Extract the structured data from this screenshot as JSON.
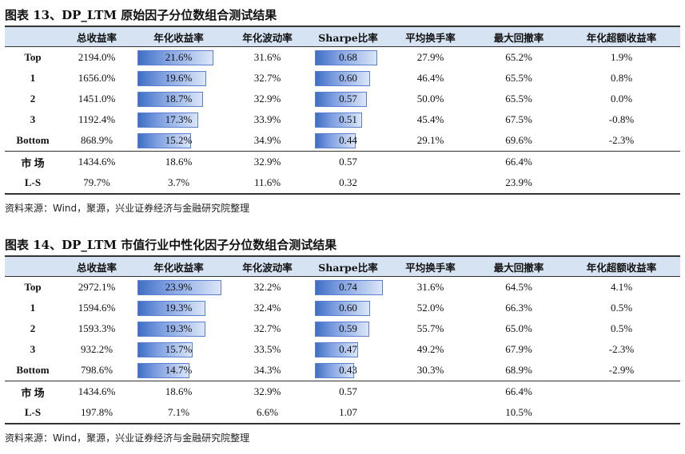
{
  "tables": [
    {
      "title": "图表 13、DP_LTM 原始因子分位数组合测试结果",
      "headers": [
        "",
        "总收益率",
        "年化收益率",
        "年化波动率",
        "Sharpe比率",
        "平均换手率",
        "最大回撤率",
        "年化超额收益率"
      ],
      "rows": [
        {
          "label": "Top",
          "total": "2194.0%",
          "annual": "21.6%",
          "vol": "31.6%",
          "sharpe": "0.68",
          "turnover": "27.9%",
          "maxdd": "65.2%",
          "excess": "1.9%",
          "annual_bar": 0.216,
          "sharpe_bar": 0.68
        },
        {
          "label": "1",
          "total": "1656.0%",
          "annual": "19.6%",
          "vol": "32.7%",
          "sharpe": "0.60",
          "turnover": "46.4%",
          "maxdd": "65.5%",
          "excess": "0.8%",
          "annual_bar": 0.196,
          "sharpe_bar": 0.6
        },
        {
          "label": "2",
          "total": "1451.0%",
          "annual": "18.7%",
          "vol": "32.9%",
          "sharpe": "0.57",
          "turnover": "50.0%",
          "maxdd": "65.5%",
          "excess": "0.0%",
          "annual_bar": 0.187,
          "sharpe_bar": 0.57
        },
        {
          "label": "3",
          "total": "1192.4%",
          "annual": "17.3%",
          "vol": "33.9%",
          "sharpe": "0.51",
          "turnover": "45.4%",
          "maxdd": "67.5%",
          "excess": "-0.8%",
          "annual_bar": 0.173,
          "sharpe_bar": 0.51
        },
        {
          "label": "Bottom",
          "total": "868.9%",
          "annual": "15.2%",
          "vol": "34.9%",
          "sharpe": "0.44",
          "turnover": "29.1%",
          "maxdd": "69.6%",
          "excess": "-2.3%",
          "annual_bar": 0.152,
          "sharpe_bar": 0.44
        },
        {
          "label": "市 场",
          "total": "1434.6%",
          "annual": "18.6%",
          "vol": "32.9%",
          "sharpe": "0.57",
          "turnover": "",
          "maxdd": "66.4%",
          "excess": ""
        },
        {
          "label": "L-S",
          "total": "79.7%",
          "annual": "3.7%",
          "vol": "11.6%",
          "sharpe": "0.32",
          "turnover": "",
          "maxdd": "23.9%",
          "excess": ""
        }
      ],
      "source": "资料来源：Wind，聚源，兴业证券经济与金融研究院整理"
    },
    {
      "title": "图表 14、DP_LTM 市值行业中性化因子分位数组合测试结果",
      "headers": [
        "",
        "总收益率",
        "年化收益率",
        "年化波动率",
        "Sharpe比率",
        "平均换手率",
        "最大回撤率",
        "年化超额收益率"
      ],
      "rows": [
        {
          "label": "Top",
          "total": "2972.1%",
          "annual": "23.9%",
          "vol": "32.2%",
          "sharpe": "0.74",
          "turnover": "31.6%",
          "maxdd": "64.5%",
          "excess": "4.1%",
          "annual_bar": 0.239,
          "sharpe_bar": 0.74
        },
        {
          "label": "1",
          "total": "1594.6%",
          "annual": "19.3%",
          "vol": "32.4%",
          "sharpe": "0.60",
          "turnover": "52.0%",
          "maxdd": "66.3%",
          "excess": "0.5%",
          "annual_bar": 0.193,
          "sharpe_bar": 0.6
        },
        {
          "label": "2",
          "total": "1593.3%",
          "annual": "19.3%",
          "vol": "32.7%",
          "sharpe": "0.59",
          "turnover": "55.7%",
          "maxdd": "65.0%",
          "excess": "0.5%",
          "annual_bar": 0.193,
          "sharpe_bar": 0.59
        },
        {
          "label": "3",
          "total": "932.2%",
          "annual": "15.7%",
          "vol": "33.5%",
          "sharpe": "0.47",
          "turnover": "49.2%",
          "maxdd": "67.9%",
          "excess": "-2.3%",
          "annual_bar": 0.157,
          "sharpe_bar": 0.47
        },
        {
          "label": "Bottom",
          "total": "798.6%",
          "annual": "14.7%",
          "vol": "34.3%",
          "sharpe": "0.43",
          "turnover": "30.3%",
          "maxdd": "68.9%",
          "excess": "-2.9%",
          "annual_bar": 0.147,
          "sharpe_bar": 0.43
        },
        {
          "label": "市 场",
          "total": "1434.6%",
          "annual": "18.6%",
          "vol": "32.9%",
          "sharpe": "0.57",
          "turnover": "",
          "maxdd": "66.4%",
          "excess": ""
        },
        {
          "label": "L-S",
          "total": "197.8%",
          "annual": "7.1%",
          "vol": "6.6%",
          "sharpe": "1.07",
          "turnover": "",
          "maxdd": "10.5%",
          "excess": ""
        }
      ],
      "source": "资料来源：Wind，聚源，兴业证券经济与金融研究院整理"
    }
  ]
}
